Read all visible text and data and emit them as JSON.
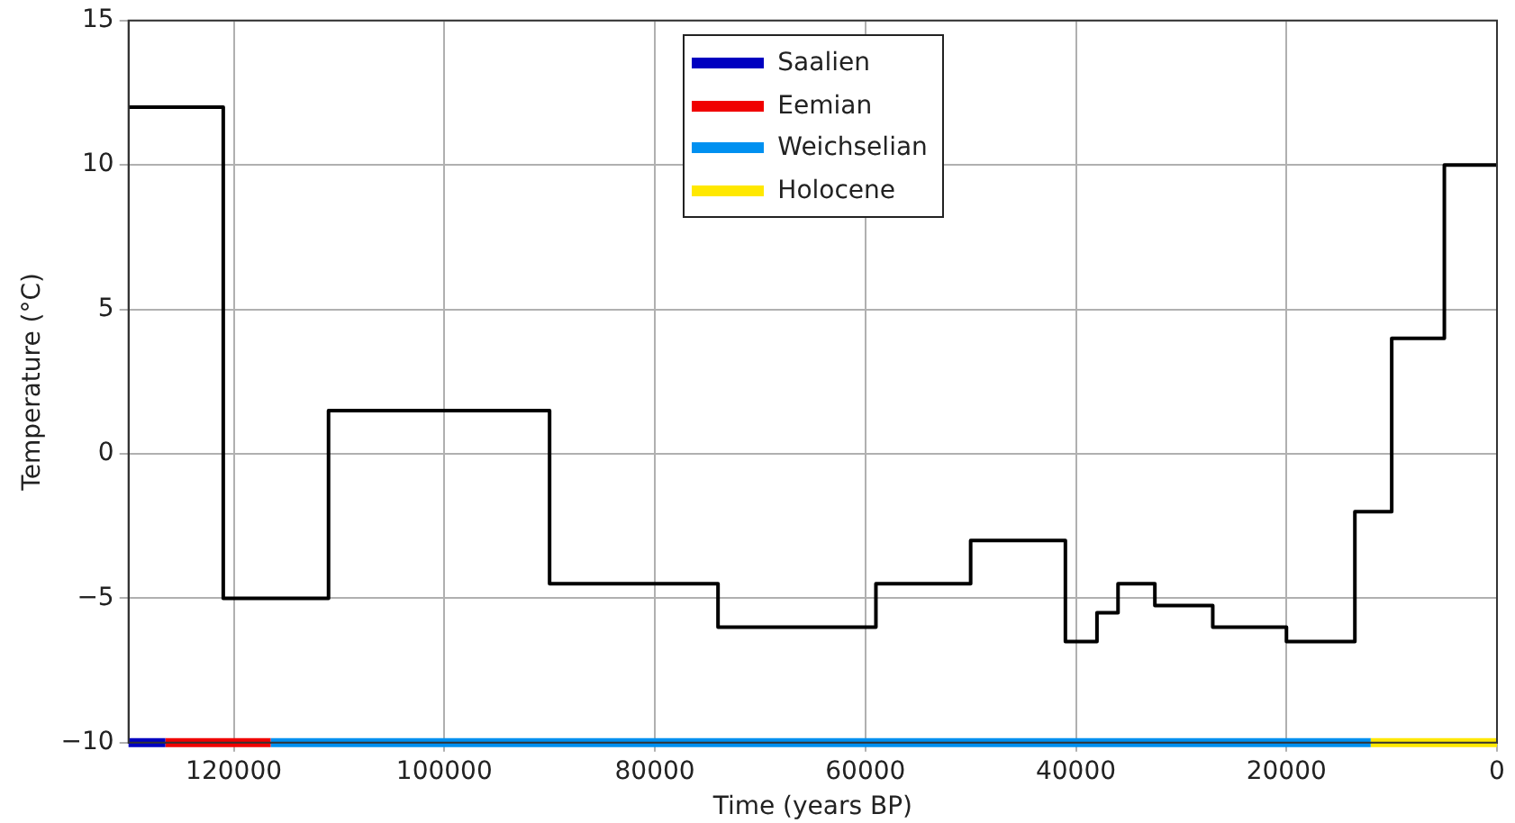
{
  "chart_data": {
    "type": "step",
    "xlabel": "Time (years BP)",
    "ylabel": "Temperature (°C)",
    "xlim": [
      130000,
      0
    ],
    "xticks": [
      120000,
      100000,
      80000,
      60000,
      40000,
      20000,
      0
    ],
    "ylim": [
      -10,
      15
    ],
    "yticks": [
      -10,
      -5,
      0,
      5,
      10,
      15
    ],
    "grid": true,
    "legend": "top",
    "series": [
      {
        "type": "step",
        "color": "#000000",
        "x": [
          130000,
          121000,
          111000,
          90000,
          74000,
          59000,
          50000,
          41000,
          38000,
          36000,
          32500,
          27000,
          20000,
          13500,
          10000,
          5000,
          0
        ],
        "values": [
          12,
          -5,
          1.5,
          -4.5,
          -6,
          -4.5,
          -3,
          -6.5,
          -5.5,
          -4.5,
          -5.25,
          -6,
          -6.5,
          -2,
          4,
          10,
          10
        ]
      },
      {
        "type": "line",
        "name": "Saalien",
        "color": "#0000c0",
        "x": [
          130000,
          126500
        ],
        "values": [
          -10,
          -10
        ]
      },
      {
        "type": "line",
        "name": "Eemian",
        "color": "#f00000",
        "x": [
          126500,
          116500
        ],
        "values": [
          -10,
          -10
        ]
      },
      {
        "type": "line",
        "name": "Weichselian",
        "color": "#0090f0",
        "x": [
          116500,
          12000
        ],
        "values": [
          -10,
          -10
        ]
      },
      {
        "type": "line",
        "name": "Holocene",
        "color": "#ffe800",
        "x": [
          12000,
          0
        ],
        "values": [
          -10,
          -10
        ]
      }
    ]
  }
}
